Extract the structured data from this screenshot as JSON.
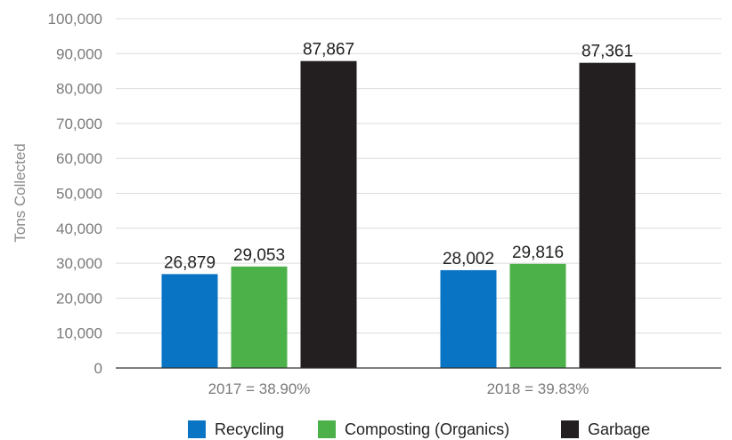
{
  "chart_data": {
    "type": "bar",
    "categories": [
      "2017 = 38.90%",
      "2018 = 39.83%"
    ],
    "series": [
      {
        "name": "Recycling",
        "values": [
          26879,
          28002
        ],
        "labels": [
          "26,879",
          "28,002"
        ],
        "color": "#0a74c4"
      },
      {
        "name": "Composting (Organics)",
        "values": [
          29053,
          29816
        ],
        "labels": [
          "29,053",
          "29,816"
        ],
        "color": "#4db14a"
      },
      {
        "name": "Garbage",
        "values": [
          87867,
          87361
        ],
        "labels": [
          "87,867",
          "87,361"
        ],
        "color": "#231f20"
      }
    ],
    "title": "",
    "xlabel": "",
    "ylabel": "Tons Collected",
    "ylim": [
      0,
      100000
    ],
    "yticks": [
      0,
      10000,
      20000,
      30000,
      40000,
      50000,
      60000,
      70000,
      80000,
      90000,
      100000
    ],
    "ytick_labels": [
      "0",
      "10,000",
      "20,000",
      "30,000",
      "40,000",
      "50,000",
      "60,000",
      "70,000",
      "80,000",
      "90,000",
      "100,000"
    ],
    "grid": true,
    "legend_position": "bottom"
  }
}
